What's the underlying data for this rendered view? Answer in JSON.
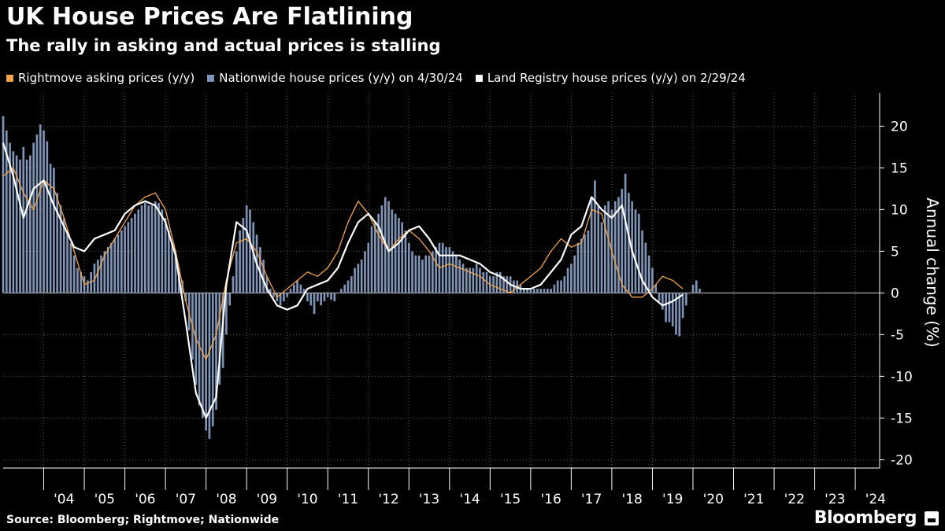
{
  "header": {
    "title": "UK House Prices Are Flatlining",
    "subtitle": "The rally in asking and actual prices is stalling"
  },
  "legend": [
    {
      "label": "Rightmove asking prices (y/y)",
      "color": "#f4a54a"
    },
    {
      "label": "Nationwide house prices (y/y) on 4/30/24",
      "color": "#7f95b8"
    },
    {
      "label": "Land Registry house prices (y/y) on 2/29/24",
      "color": "#ffffff"
    }
  ],
  "footer": {
    "source": "Source: Bloomberg; Rightmove; Nationwide",
    "brand": "Bloomberg"
  },
  "chart_data": {
    "type": "bar+line",
    "title": "UK House Prices Are Flatlining",
    "subtitle": "The rally in asking and actual prices is stalling",
    "ylabel": "Annual change (%)",
    "xlabel": "",
    "ylim": [
      -21,
      24
    ],
    "yticks": [
      20,
      15,
      10,
      5,
      0,
      -5,
      -10,
      -15,
      -20
    ],
    "xlim": [
      2003.0,
      2024.6
    ],
    "x_tick_labels": [
      "'04",
      "'05",
      "'06",
      "'07",
      "'08",
      "'09",
      "'10",
      "'11",
      "'12",
      "'13",
      "'14",
      "'15",
      "'16",
      "'17",
      "'18",
      "'19",
      "'20",
      "'21",
      "'22",
      "'23",
      "'24"
    ],
    "x_tick_years": [
      2004,
      2005,
      2006,
      2007,
      2008,
      2009,
      2010,
      2011,
      2012,
      2013,
      2014,
      2015,
      2016,
      2017,
      2018,
      2019,
      2020,
      2021,
      2022,
      2023,
      2024
    ],
    "grid": true,
    "series": [
      {
        "name": "Nationwide house prices (y/y) on 4/30/24",
        "kind": "bar",
        "color": "#7f95b8",
        "x_start": 2003.0,
        "x_step": 0.0833333,
        "values": [
          21.2,
          19.5,
          18.0,
          17.0,
          16.5,
          16.0,
          17.5,
          16.0,
          16.5,
          18.0,
          19.0,
          20.2,
          19.5,
          18.2,
          15.5,
          15.0,
          12.0,
          10.5,
          9.0,
          7.5,
          6.0,
          4.5,
          3.0,
          2.5,
          2.0,
          1.5,
          2.5,
          3.5,
          4.0,
          4.5,
          5.0,
          5.5,
          6.0,
          6.5,
          7.0,
          7.5,
          8.0,
          8.5,
          9.0,
          9.5,
          10.0,
          10.5,
          10.8,
          10.5,
          10.5,
          11.0,
          10.8,
          10.0,
          9.0,
          7.5,
          6.0,
          4.5,
          3.0,
          1.5,
          -1.0,
          -4.5,
          -8.0,
          -11.0,
          -13.5,
          -15.0,
          -16.5,
          -17.5,
          -16.0,
          -14.0,
          -11.0,
          -9.0,
          -5.0,
          -1.5,
          2.0,
          5.0,
          7.5,
          9.0,
          10.5,
          10.0,
          8.5,
          7.0,
          5.5,
          4.0,
          2.0,
          0.5,
          -0.5,
          -1.0,
          -1.5,
          -1.0,
          -0.5,
          0.5,
          1.0,
          1.5,
          1.0,
          0.5,
          -1.0,
          -1.5,
          -2.5,
          -1.0,
          -1.5,
          -1.0,
          -0.5,
          -0.8,
          -1.0,
          0.0,
          0.5,
          1.0,
          1.5,
          2.0,
          3.0,
          3.5,
          4.0,
          5.0,
          6.0,
          8.0,
          8.5,
          9.5,
          10.5,
          11.5,
          11.0,
          10.0,
          9.5,
          9.0,
          8.5,
          7.5,
          6.0,
          5.0,
          4.5,
          4.5,
          4.0,
          4.5,
          4.5,
          5.0,
          5.5,
          6.0,
          6.0,
          5.5,
          5.5,
          5.0,
          4.5,
          4.0,
          3.5,
          3.0,
          3.0,
          3.0,
          3.5,
          3.0,
          2.5,
          2.5,
          2.0,
          2.0,
          2.5,
          2.5,
          2.0,
          2.0,
          2.0,
          1.5,
          1.5,
          1.0,
          0.5,
          0.5,
          0.5,
          0.5,
          0.5,
          0.5,
          0.5,
          0.5,
          0.5,
          1.0,
          1.5,
          1.5,
          2.0,
          3.0,
          3.5,
          4.5,
          6.0,
          6.5,
          7.0,
          7.5,
          11.5,
          13.5,
          10.5,
          8.5,
          10.5,
          11.0,
          10.0,
          11.0,
          11.5,
          12.5,
          14.3,
          12.0,
          11.0,
          10.0,
          9.5,
          7.5,
          6.0,
          4.5,
          3.0,
          1.0,
          -1.0,
          -2.0,
          -3.5,
          -3.5,
          -4.0,
          -5.0,
          -5.2,
          -3.0,
          -1.5,
          0.0,
          1.0,
          1.5,
          0.5
        ]
      },
      {
        "name": "Rightmove asking prices (y/y)",
        "kind": "line",
        "color": "#f4a54a",
        "x_start": 2003.0,
        "x_step": 0.25,
        "values": [
          14.0,
          15.0,
          12.0,
          10.0,
          13.5,
          12.5,
          9.0,
          5.0,
          1.0,
          1.5,
          4.5,
          6.5,
          8.5,
          10.5,
          11.5,
          12.0,
          10.0,
          5.0,
          -1.0,
          -5.5,
          -8.0,
          -5.0,
          1.5,
          6.0,
          6.5,
          5.0,
          2.0,
          -0.5,
          0.5,
          1.5,
          2.5,
          2.0,
          3.0,
          5.0,
          8.5,
          11.0,
          9.5,
          7.0,
          5.0,
          6.5,
          7.5,
          6.5,
          5.0,
          3.0,
          3.5,
          3.0,
          2.5,
          2.0,
          1.0,
          0.5,
          0.0,
          1.0,
          2.0,
          3.0,
          5.0,
          6.5,
          5.5,
          6.0,
          10.0,
          9.5,
          5.0,
          1.0,
          -0.5,
          -0.5,
          0.5,
          2.0,
          1.5,
          0.5
        ]
      },
      {
        "name": "Land Registry house prices (y/y) on 2/29/24",
        "kind": "line",
        "color": "#ffffff",
        "x_start": 2003.0,
        "x_step": 0.25,
        "values": [
          18.0,
          14.0,
          9.0,
          12.5,
          13.5,
          10.5,
          8.0,
          5.5,
          5.0,
          6.5,
          7.0,
          7.5,
          9.5,
          10.5,
          11.0,
          10.5,
          8.5,
          4.5,
          -3.5,
          -12.0,
          -15.0,
          -12.5,
          1.0,
          8.5,
          7.5,
          3.5,
          0.5,
          -1.5,
          -2.0,
          -1.5,
          0.5,
          1.0,
          1.5,
          3.0,
          6.0,
          8.5,
          9.5,
          8.0,
          5.0,
          6.0,
          7.5,
          8.0,
          6.5,
          4.5,
          4.5,
          4.5,
          4.0,
          3.5,
          2.5,
          2.0,
          1.0,
          0.5,
          0.5,
          1.0,
          2.5,
          4.0,
          7.0,
          8.0,
          11.5,
          10.0,
          9.0,
          10.5,
          5.0,
          1.5,
          -0.5,
          -1.5,
          -1.0,
          -0.2
        ]
      }
    ]
  }
}
